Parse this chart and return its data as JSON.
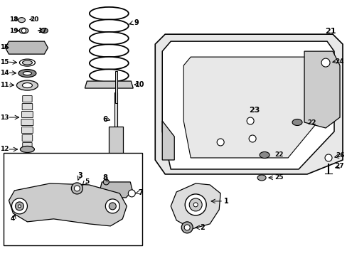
{
  "bg_color": "#ffffff",
  "line_color": "#000000",
  "gray_fill": "#d0d0d0",
  "light_gray": "#e8e8e8",
  "fig_width": 4.89,
  "fig_height": 3.6
}
